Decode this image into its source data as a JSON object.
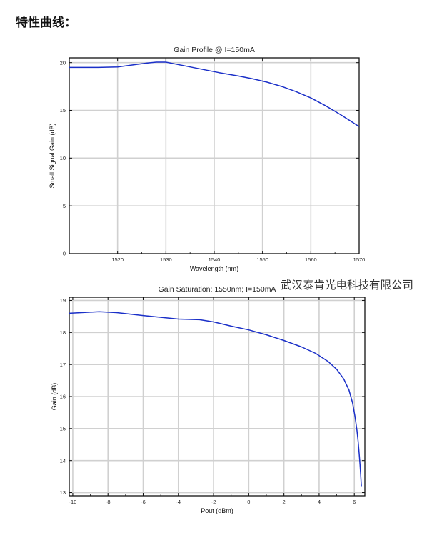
{
  "heading": "特性曲线：",
  "watermark": "武汉泰肯光电科技有限公司",
  "chart_data": [
    {
      "type": "line",
      "title": "Gain Profile @ I=150mA",
      "xlabel": "Wavelength (nm)",
      "ylabel": "Small Signal Gain (dB)",
      "xlim": [
        1510,
        1570
      ],
      "ylim": [
        0,
        20.5
      ],
      "xticks": [
        1520,
        1530,
        1540,
        1550,
        1560,
        1570
      ],
      "yticks": [
        0,
        5,
        10,
        15,
        20
      ],
      "grid": true,
      "line_color": "#1a2fc8",
      "series": [
        {
          "x": [
            1510,
            1516,
            1520,
            1523,
            1526,
            1528,
            1530,
            1532,
            1535,
            1538,
            1541,
            1545,
            1548,
            1551,
            1554,
            1557,
            1560,
            1563,
            1566,
            1568,
            1570
          ],
          "y": [
            19.5,
            19.5,
            19.55,
            19.75,
            19.95,
            20.05,
            20.05,
            19.85,
            19.55,
            19.25,
            18.95,
            18.6,
            18.3,
            17.95,
            17.5,
            16.95,
            16.3,
            15.5,
            14.6,
            13.95,
            13.3
          ]
        }
      ]
    },
    {
      "type": "line",
      "title": "Gain Saturation: 1550nm; I=150mA",
      "xlabel": "Pout (dBm)",
      "ylabel": "Gain (dB)",
      "xlim": [
        -10.2,
        6.6
      ],
      "ylim": [
        12.9,
        19.1
      ],
      "xticks": [
        -10,
        -8,
        -6,
        -4,
        -2,
        0,
        2,
        4,
        6
      ],
      "yticks": [
        13,
        14,
        15,
        16,
        17,
        18,
        19
      ],
      "grid": true,
      "line_color": "#1a2fc8",
      "series": [
        {
          "x": [
            -10.2,
            -9.5,
            -8.5,
            -7.5,
            -6,
            -4,
            -2.8,
            -2,
            -1,
            0,
            1,
            2,
            3,
            3.8,
            4.5,
            5,
            5.4,
            5.7,
            5.9,
            6.05,
            6.15,
            6.22,
            6.28,
            6.33,
            6.37,
            6.4
          ],
          "y": [
            18.6,
            18.62,
            18.65,
            18.62,
            18.53,
            18.42,
            18.4,
            18.33,
            18.2,
            18.08,
            17.93,
            17.75,
            17.55,
            17.35,
            17.1,
            16.85,
            16.55,
            16.2,
            15.8,
            15.35,
            14.95,
            14.6,
            14.2,
            13.85,
            13.5,
            13.2
          ]
        }
      ]
    }
  ]
}
